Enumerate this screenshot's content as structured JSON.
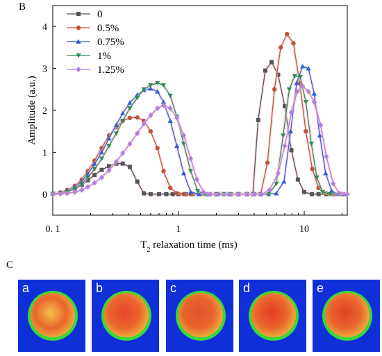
{
  "panel_labels": {
    "chart_panel": "B",
    "image_panel": "C"
  },
  "chart_data": {
    "type": "line",
    "x_scale": "log",
    "xlabel_main": "T",
    "xlabel_sub": "2",
    "xlabel_rest": " relaxation time (ms)",
    "ylabel": "Amplitude (a.u.)",
    "xlim": [
      0.1,
      22
    ],
    "ylim": [
      -0.5,
      4.5
    ],
    "x_ticks": [
      {
        "value": 0.1,
        "label": "0. 1"
      },
      {
        "value": 1,
        "label": "1"
      },
      {
        "value": 10,
        "label": "10"
      }
    ],
    "y_ticks": [
      0,
      1,
      2,
      3,
      4
    ],
    "legend_position": "top-left",
    "series": [
      {
        "name": "0",
        "color": "#555555",
        "marker": "square",
        "points": [
          [
            0.1,
            0.01
          ],
          [
            0.115,
            0.03
          ],
          [
            0.13,
            0.07
          ],
          [
            0.15,
            0.13
          ],
          [
            0.17,
            0.22
          ],
          [
            0.19,
            0.33
          ],
          [
            0.215,
            0.46
          ],
          [
            0.245,
            0.58
          ],
          [
            0.28,
            0.67
          ],
          [
            0.32,
            0.73
          ],
          [
            0.36,
            0.73
          ],
          [
            0.41,
            0.65
          ],
          [
            0.47,
            0.3
          ],
          [
            0.53,
            0.02
          ],
          [
            0.6,
            0.0
          ],
          [
            0.7,
            0.0
          ],
          [
            0.8,
            0.0
          ],
          [
            0.9,
            0.0
          ],
          [
            1.0,
            0.0
          ],
          [
            1.15,
            0.0
          ],
          [
            1.3,
            0.0
          ],
          [
            1.5,
            0.0
          ],
          [
            1.7,
            0.0
          ],
          [
            2.0,
            0.0
          ],
          [
            2.3,
            0.0
          ],
          [
            2.6,
            0.0
          ],
          [
            3.0,
            0.0
          ],
          [
            3.5,
            0.0
          ],
          [
            3.9,
            0.0
          ],
          [
            4.3,
            1.77
          ],
          [
            4.9,
            2.95
          ],
          [
            5.5,
            3.15
          ],
          [
            6.2,
            2.85
          ],
          [
            7.0,
            2.1
          ],
          [
            7.9,
            1.05
          ],
          [
            8.9,
            0.35
          ],
          [
            10.0,
            0.05
          ],
          [
            11.5,
            0.0
          ],
          [
            13.0,
            0.0
          ],
          [
            15.0,
            0.0
          ],
          [
            17.0,
            0.0
          ],
          [
            20.0,
            0.0
          ]
        ]
      },
      {
        "name": "0.5%",
        "color": "#c0533a",
        "marker": "circle",
        "points": [
          [
            0.1,
            0.01
          ],
          [
            0.115,
            0.04
          ],
          [
            0.13,
            0.1
          ],
          [
            0.15,
            0.2
          ],
          [
            0.17,
            0.35
          ],
          [
            0.19,
            0.55
          ],
          [
            0.215,
            0.8
          ],
          [
            0.245,
            1.1
          ],
          [
            0.28,
            1.4
          ],
          [
            0.32,
            1.6
          ],
          [
            0.36,
            1.75
          ],
          [
            0.41,
            1.82
          ],
          [
            0.47,
            1.83
          ],
          [
            0.53,
            1.75
          ],
          [
            0.6,
            1.5
          ],
          [
            0.68,
            1.1
          ],
          [
            0.76,
            0.55
          ],
          [
            0.86,
            0.15
          ],
          [
            0.97,
            0.02
          ],
          [
            1.1,
            0.0
          ],
          [
            1.25,
            0.0
          ],
          [
            1.5,
            0.0
          ],
          [
            1.7,
            0.0
          ],
          [
            2.0,
            0.0
          ],
          [
            2.3,
            0.0
          ],
          [
            2.6,
            0.0
          ],
          [
            3.0,
            0.0
          ],
          [
            3.5,
            0.0
          ],
          [
            4.0,
            0.0
          ],
          [
            4.5,
            0.0
          ],
          [
            5.1,
            0.75
          ],
          [
            5.8,
            2.5
          ],
          [
            6.5,
            3.5
          ],
          [
            7.3,
            3.82
          ],
          [
            8.2,
            3.6
          ],
          [
            9.2,
            2.65
          ],
          [
            10.3,
            1.5
          ],
          [
            11.6,
            0.6
          ],
          [
            13.0,
            0.15
          ],
          [
            15.0,
            0.02
          ],
          [
            17.0,
            0.0
          ],
          [
            20.0,
            0.0
          ]
        ]
      },
      {
        "name": "0.75%",
        "color": "#2f5fd8",
        "marker": "triangle",
        "points": [
          [
            0.1,
            0.01
          ],
          [
            0.115,
            0.03
          ],
          [
            0.13,
            0.08
          ],
          [
            0.15,
            0.17
          ],
          [
            0.17,
            0.3
          ],
          [
            0.19,
            0.48
          ],
          [
            0.215,
            0.72
          ],
          [
            0.245,
            1.0
          ],
          [
            0.28,
            1.33
          ],
          [
            0.32,
            1.65
          ],
          [
            0.36,
            1.93
          ],
          [
            0.41,
            2.18
          ],
          [
            0.47,
            2.37
          ],
          [
            0.53,
            2.48
          ],
          [
            0.6,
            2.52
          ],
          [
            0.68,
            2.45
          ],
          [
            0.76,
            2.2
          ],
          [
            0.86,
            1.75
          ],
          [
            0.97,
            1.15
          ],
          [
            1.1,
            0.5
          ],
          [
            1.25,
            0.05
          ],
          [
            1.45,
            0.0
          ],
          [
            1.7,
            0.0
          ],
          [
            2.0,
            0.0
          ],
          [
            2.3,
            0.0
          ],
          [
            2.6,
            0.0
          ],
          [
            3.0,
            0.0
          ],
          [
            3.5,
            0.0
          ],
          [
            4.0,
            0.0
          ],
          [
            4.5,
            0.0
          ],
          [
            5.2,
            0.0
          ],
          [
            6.0,
            0.02
          ],
          [
            6.9,
            0.3
          ],
          [
            7.8,
            1.5
          ],
          [
            8.7,
            2.65
          ],
          [
            9.7,
            3.05
          ],
          [
            10.8,
            3.0
          ],
          [
            12.0,
            2.4
          ],
          [
            13.3,
            1.4
          ],
          [
            14.8,
            0.5
          ],
          [
            16.5,
            0.08
          ],
          [
            18.5,
            0.0
          ],
          [
            21.0,
            0.0
          ]
        ]
      },
      {
        "name": "1%",
        "color": "#2e8b57",
        "marker": "triangle-down",
        "points": [
          [
            0.1,
            0.01
          ],
          [
            0.115,
            0.02
          ],
          [
            0.13,
            0.06
          ],
          [
            0.15,
            0.13
          ],
          [
            0.17,
            0.24
          ],
          [
            0.19,
            0.4
          ],
          [
            0.215,
            0.6
          ],
          [
            0.245,
            0.85
          ],
          [
            0.28,
            1.15
          ],
          [
            0.32,
            1.45
          ],
          [
            0.36,
            1.75
          ],
          [
            0.41,
            2.05
          ],
          [
            0.47,
            2.3
          ],
          [
            0.53,
            2.5
          ],
          [
            0.6,
            2.6
          ],
          [
            0.68,
            2.65
          ],
          [
            0.76,
            2.6
          ],
          [
            0.86,
            2.35
          ],
          [
            0.97,
            1.85
          ],
          [
            1.1,
            1.2
          ],
          [
            1.25,
            0.55
          ],
          [
            1.42,
            0.08
          ],
          [
            1.6,
            0.0
          ],
          [
            2.0,
            0.0
          ],
          [
            2.3,
            0.0
          ],
          [
            2.6,
            0.0
          ],
          [
            3.0,
            0.0
          ],
          [
            3.5,
            0.0
          ],
          [
            4.0,
            0.0
          ],
          [
            4.5,
            0.0
          ],
          [
            5.2,
            0.0
          ],
          [
            6.0,
            0.25
          ],
          [
            6.8,
            1.4
          ],
          [
            7.6,
            2.5
          ],
          [
            8.4,
            2.82
          ],
          [
            9.3,
            2.8
          ],
          [
            10.3,
            2.2
          ],
          [
            11.4,
            1.2
          ],
          [
            12.6,
            0.4
          ],
          [
            14.0,
            0.05
          ],
          [
            16.0,
            0.0
          ],
          [
            19.0,
            0.0
          ]
        ]
      },
      {
        "name": "1.25%",
        "color": "#b57fdc",
        "marker": "diamond",
        "points": [
          [
            0.1,
            0.0
          ],
          [
            0.115,
            0.01
          ],
          [
            0.13,
            0.02
          ],
          [
            0.15,
            0.05
          ],
          [
            0.17,
            0.1
          ],
          [
            0.19,
            0.17
          ],
          [
            0.215,
            0.27
          ],
          [
            0.245,
            0.4
          ],
          [
            0.28,
            0.57
          ],
          [
            0.32,
            0.77
          ],
          [
            0.36,
            0.98
          ],
          [
            0.41,
            1.2
          ],
          [
            0.47,
            1.45
          ],
          [
            0.53,
            1.68
          ],
          [
            0.6,
            1.88
          ],
          [
            0.68,
            2.05
          ],
          [
            0.76,
            2.12
          ],
          [
            0.86,
            2.05
          ],
          [
            0.97,
            1.82
          ],
          [
            1.1,
            1.4
          ],
          [
            1.25,
            0.85
          ],
          [
            1.4,
            0.35
          ],
          [
            1.58,
            0.05
          ],
          [
            1.8,
            0.0
          ],
          [
            2.1,
            0.0
          ],
          [
            2.5,
            0.0
          ],
          [
            3.0,
            0.0
          ],
          [
            3.5,
            0.0
          ],
          [
            4.0,
            0.0
          ],
          [
            4.6,
            0.0
          ],
          [
            5.3,
            0.1
          ],
          [
            6.2,
            0.5
          ],
          [
            7.0,
            1.15
          ],
          [
            7.9,
            1.95
          ],
          [
            8.8,
            2.45
          ],
          [
            9.7,
            2.58
          ],
          [
            10.8,
            2.45
          ],
          [
            12.0,
            2.2
          ],
          [
            13.5,
            1.65
          ],
          [
            15.0,
            0.9
          ],
          [
            17.0,
            0.25
          ],
          [
            19.0,
            0.02
          ],
          [
            22.0,
            0.0
          ]
        ]
      }
    ]
  },
  "mri_images": [
    {
      "label": "a"
    },
    {
      "label": "b"
    },
    {
      "label": "c"
    },
    {
      "label": "d"
    },
    {
      "label": "e"
    }
  ]
}
